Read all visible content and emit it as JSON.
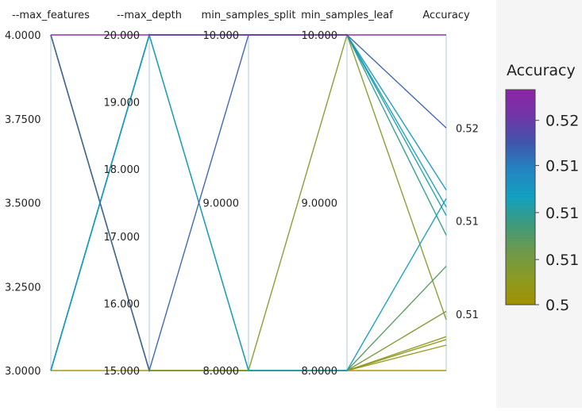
{
  "chart_data": {
    "type": "parallel_coordinates",
    "title": "",
    "dimensions": [
      {
        "name": "--max_features",
        "range": [
          3,
          4
        ],
        "ticks": [
          {
            "value": 4,
            "label": "4.0000"
          },
          {
            "value": 3.75,
            "label": "3.7500"
          },
          {
            "value": 3.5,
            "label": "3.5000"
          },
          {
            "value": 3.25,
            "label": "3.2500"
          },
          {
            "value": 3,
            "label": "3.0000"
          }
        ]
      },
      {
        "name": "--max_depth",
        "range": [
          15,
          20
        ],
        "ticks": [
          {
            "value": 20,
            "label": "20.000"
          },
          {
            "value": 19,
            "label": "19.000"
          },
          {
            "value": 18,
            "label": "18.000"
          },
          {
            "value": 17,
            "label": "17.000"
          },
          {
            "value": 16,
            "label": "16.000"
          },
          {
            "value": 15,
            "label": "15.000"
          }
        ]
      },
      {
        "name": "min_samples_split",
        "range": [
          8,
          10
        ],
        "ticks": [
          {
            "value": 10,
            "label": "10.000"
          },
          {
            "value": 9,
            "label": "9.0000"
          },
          {
            "value": 8,
            "label": "8.0000"
          }
        ]
      },
      {
        "name": "min_samples_leaf",
        "range": [
          8,
          10
        ],
        "ticks": [
          {
            "value": 10,
            "label": "10.000"
          },
          {
            "value": 9,
            "label": "9.0000"
          },
          {
            "value": 8,
            "label": "8.0000"
          }
        ]
      },
      {
        "name": "Accuracy",
        "range": [
          0.5049,
          0.5168
        ],
        "ticks": [
          {
            "value": 0.5135,
            "label": "0.52"
          },
          {
            "value": 0.5102,
            "label": "0.51"
          },
          {
            "value": 0.5069,
            "label": "0.51"
          }
        ]
      }
    ],
    "runs": [
      {
        "values": [
          4,
          20,
          10,
          10,
          0.5168
        ]
      },
      {
        "values": [
          4,
          15,
          10,
          10,
          0.5135
        ]
      },
      {
        "values": [
          3,
          20,
          10,
          10,
          0.5107
        ]
      },
      {
        "values": [
          3,
          20,
          10,
          10,
          0.5113
        ]
      },
      {
        "values": [
          3,
          20,
          10,
          10,
          0.5104
        ]
      },
      {
        "values": [
          3,
          20,
          10,
          10,
          0.5097
        ]
      },
      {
        "values": [
          4,
          15,
          8,
          10,
          0.5067
        ]
      },
      {
        "values": [
          3,
          20,
          8,
          8,
          0.511
        ]
      },
      {
        "values": [
          3,
          20,
          8,
          8,
          0.5086
        ]
      },
      {
        "values": [
          4,
          15,
          8,
          8,
          0.507
        ]
      },
      {
        "values": [
          4,
          15,
          8,
          8,
          0.5061
        ]
      },
      {
        "values": [
          4,
          15,
          8,
          8,
          0.506
        ]
      },
      {
        "values": [
          4,
          15,
          8,
          8,
          0.5058
        ]
      },
      {
        "values": [
          3,
          15,
          8,
          8,
          0.5049
        ]
      }
    ],
    "colorbar": {
      "title": "Accuracy",
      "range": [
        0.5049,
        0.5168
      ],
      "ticks": [
        {
          "value": 0.5151,
          "label": "0.52"
        },
        {
          "value": 0.5126,
          "label": "0.51"
        },
        {
          "value": 0.51,
          "label": "0.51"
        },
        {
          "value": 0.5074,
          "label": "0.51"
        },
        {
          "value": 0.5049,
          "label": "0.5"
        }
      ],
      "colors": [
        "#a39100",
        "#8b9a24",
        "#6c9a4c",
        "#3d9a7c",
        "#12a0bf",
        "#2486c2",
        "#3f57ad",
        "#7036a7",
        "#8e24a6"
      ]
    }
  }
}
